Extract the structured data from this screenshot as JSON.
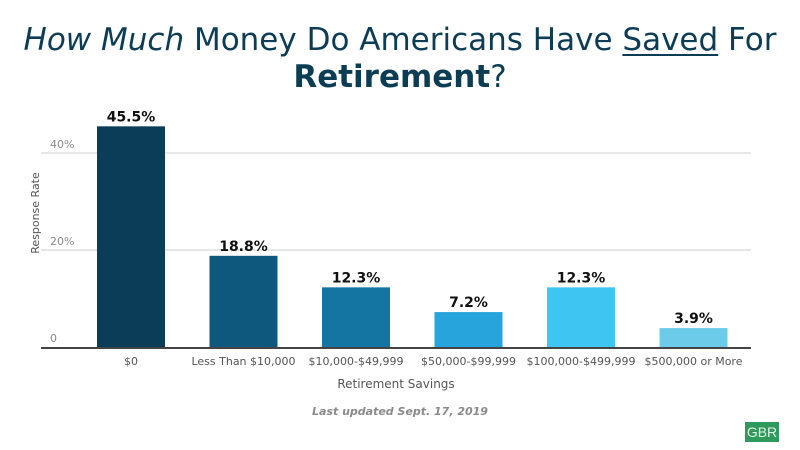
{
  "title": {
    "part1_italic": "How Much",
    "part2": " Money Do Americans Have ",
    "part3_underline": "Saved",
    "part4": " For",
    "part5_bold": "Retirement",
    "part6": "?"
  },
  "footer": {
    "updated": "Last updated Sept. 17, 2019"
  },
  "logo": {
    "text": "GBR"
  },
  "chart_data": {
    "type": "bar",
    "title": "How Much Money Do Americans Have Saved For Retirement?",
    "xlabel": "Retirement Savings",
    "ylabel": "Response Rate",
    "categories": [
      "$0",
      "Less Than $10,000",
      "$10,000-$49,999",
      "$50,000-$99,999",
      "$100,000-$499,999",
      "$500,000 or More"
    ],
    "values": [
      45.5,
      18.8,
      12.3,
      7.2,
      12.3,
      3.9
    ],
    "data_labels": [
      "45.5%",
      "18.8%",
      "12.3%",
      "7.2%",
      "12.3%",
      "3.9%"
    ],
    "colors": [
      "#0c3d58",
      "#0e577d",
      "#1475a3",
      "#27a4dc",
      "#3ec5f1",
      "#6ccbe9"
    ],
    "yticks": [
      0,
      20,
      40
    ],
    "ytick_labels": [
      "0",
      "20%",
      "40%"
    ],
    "ylim": [
      0,
      45.5
    ],
    "grid": true,
    "legend": "none"
  }
}
